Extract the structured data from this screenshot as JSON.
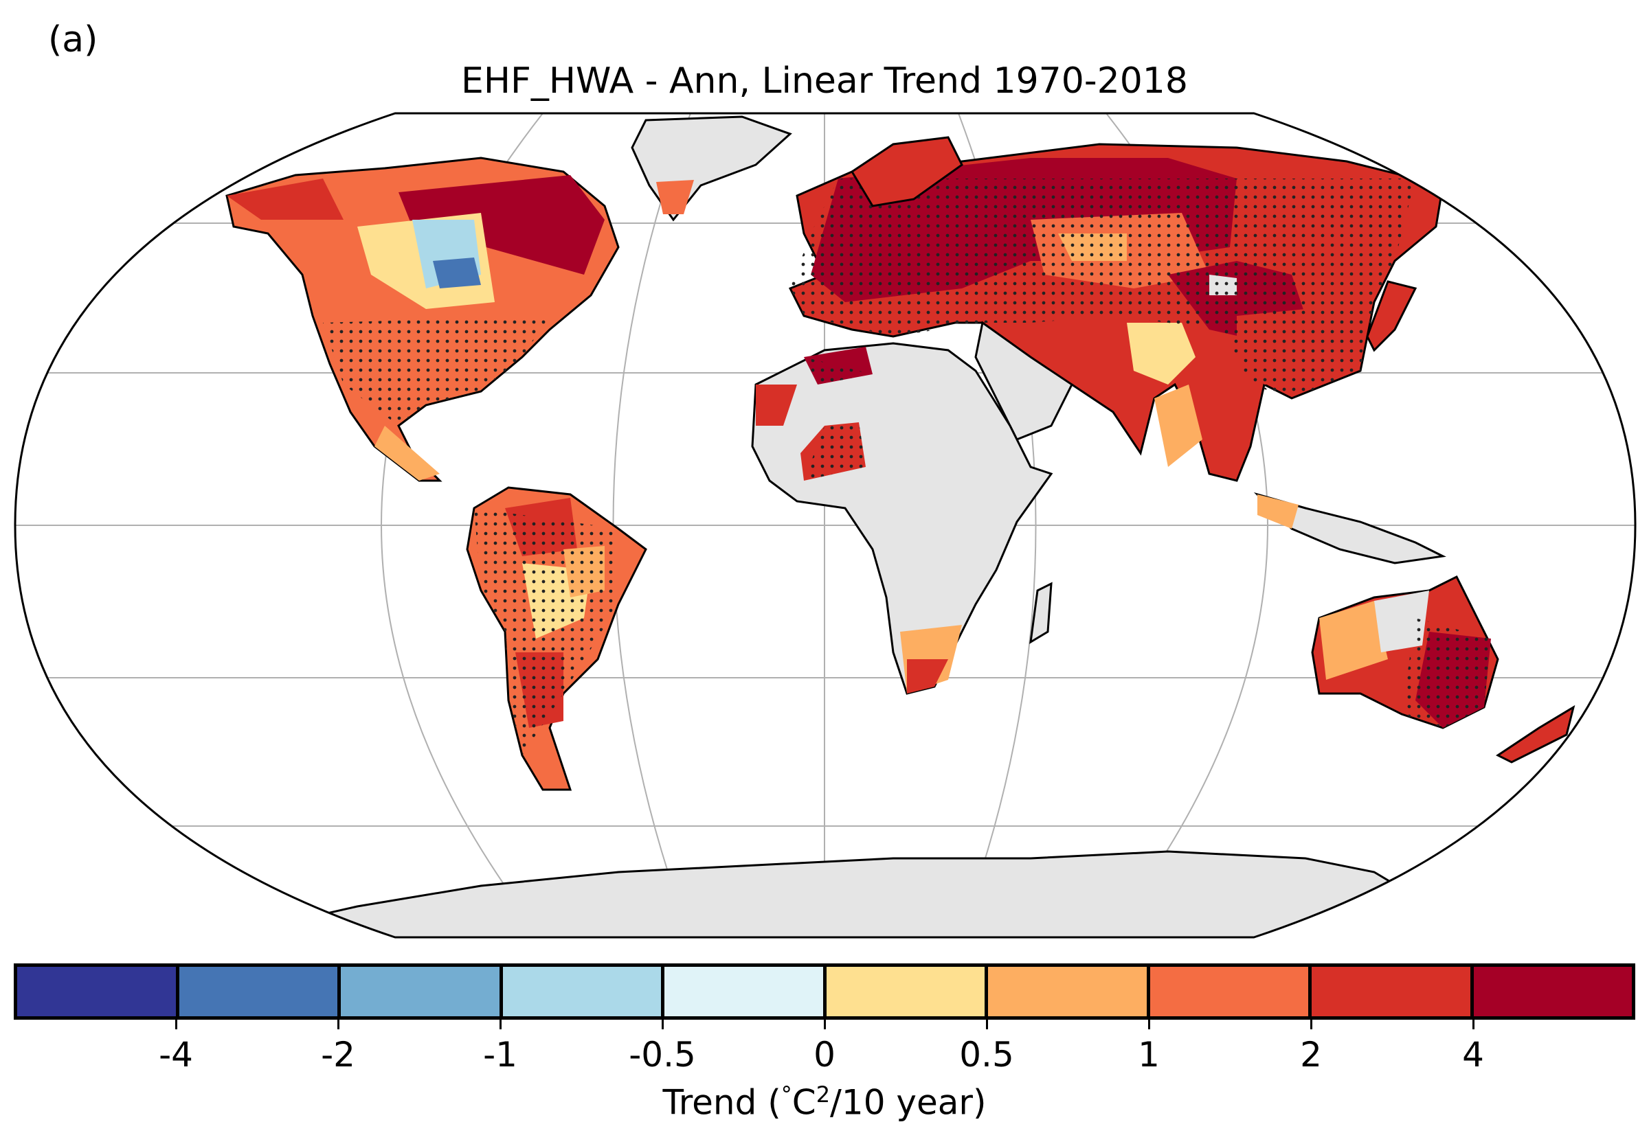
{
  "panel_label": "(a)",
  "title": "EHF_HWA - Ann, Linear Trend 1970-2018",
  "colorbar": {
    "colors": [
      "#313695",
      "#4575b4",
      "#74add1",
      "#abd9e9",
      "#e0f3f8",
      "#fee090",
      "#fdae61",
      "#f46d43",
      "#d73027",
      "#a50026"
    ],
    "tick_labels": [
      "-4",
      "-2",
      "-1",
      "-0.5",
      "0",
      "0.5",
      "1",
      "2",
      "4"
    ],
    "label_prefix": "Trend (",
    "label_degree": "°",
    "label_unit": "C",
    "label_sup": "2",
    "label_suffix": "/10 year)"
  },
  "map_colors": {
    "land_nodata": "#e5e5e5",
    "coastline": "#000000",
    "gridline": "#b0b0b0",
    "stipple": "#222222"
  }
}
